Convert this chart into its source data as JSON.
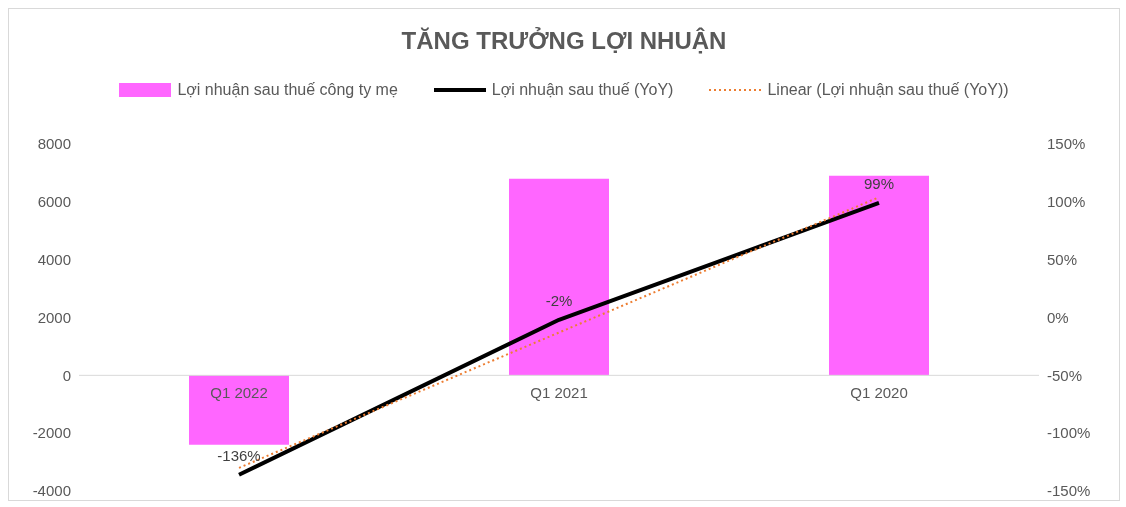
{
  "chart_data": {
    "type": "bar",
    "title": "TĂNG TRƯỞNG LỢI NHUẬN",
    "categories": [
      "Q1 2022",
      "Q1 2021",
      "Q1 2020"
    ],
    "series": [
      {
        "name": "Lợi nhuận sau thuế công ty mẹ",
        "color": "#ff66ff",
        "values": [
          -2400,
          6800,
          6900
        ]
      },
      {
        "name": "Lợi nhuận sau thuế (YoY)",
        "type": "line",
        "axis": "y2",
        "color": "#000000",
        "values": [
          -136,
          -2,
          99
        ],
        "value_labels": [
          "-136%",
          "-2%",
          "99%"
        ],
        "marker": "none",
        "line_style": "solid"
      },
      {
        "name": "Linear (Lợi nhuận sau thuế (YoY))",
        "type": "line",
        "axis": "y2",
        "color": "#ed7d31",
        "values": [
          -130,
          -13,
          104
        ],
        "marker": "none",
        "line_style": "dotted"
      }
    ],
    "ylim": [
      -4000,
      8000
    ],
    "yticks": [
      -4000,
      -2000,
      0,
      2000,
      4000,
      6000,
      8000
    ],
    "y2lim": [
      -150,
      150
    ],
    "y2ticks": [
      {
        "value": -150,
        "label": "-150%"
      },
      {
        "value": -100,
        "label": "-100%"
      },
      {
        "value": -50,
        "label": "-50%"
      },
      {
        "value": 0,
        "label": "0%"
      },
      {
        "value": 50,
        "label": "50%"
      },
      {
        "value": 100,
        "label": "100%"
      },
      {
        "value": 150,
        "label": "150%"
      }
    ],
    "grid": false,
    "legend": "top"
  }
}
